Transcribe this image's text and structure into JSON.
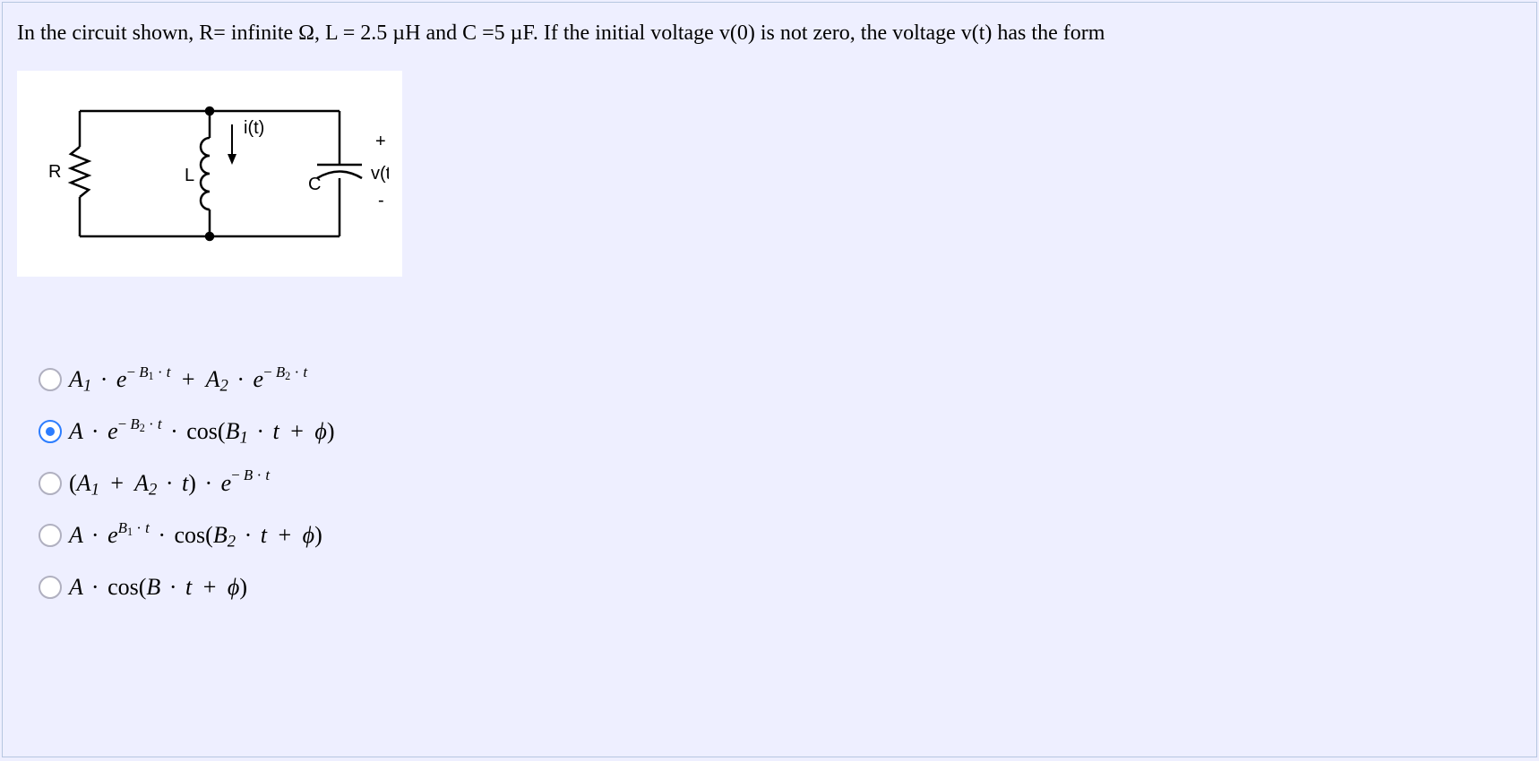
{
  "question": "In the circuit shown, R= infinite  Ω, L = 2.5 µH and C =5 µF. If the initial voltage v(0) is not zero, the voltage v(t) has the form",
  "circuit": {
    "labels": {
      "R": "R",
      "L": "L",
      "i": "i(t)",
      "C": "C",
      "v": "v(t)",
      "plus": "+",
      "minus": "-"
    },
    "colors": {
      "bg": "#ffffff",
      "stroke": "#000000"
    }
  },
  "options": {
    "selectedIndex": 1,
    "items": [
      {
        "html": "A<sub>1</sub> <span class='dot-op'>·</span> e<sup><span class='expblock'>− <i>B</i><sub>1</sub> · <i>t</i></span></sup> <span class='plus'>+</span> A<sub>2</sub> <span class='dot-op'>·</span> e<sup><span class='expblock'>− <i>B</i><sub>2</sub> · <i>t</i></span></sup>"
      },
      {
        "html": "A <span class='dot-op'>·</span> e<sup><span class='expblock'>− <i>B</i><sub>2</sub> · <i>t</i></span></sup> <span class='dot-op'>·</span> <span class='rm'>cos(</span>B<sub>1</sub> <span class='dot-op'>·</span> t <span class='plus'>+</span> ϕ<span class='rm'>)</span>"
      },
      {
        "html": "<span class='rm'>(</span>A<sub>1</sub> <span class='plus'>+</span> A<sub>2</sub> <span class='dot-op'>·</span> t<span class='rm'>)</span> <span class='dot-op'>·</span> e<sup><span class='expblock'>− <i>B</i> · <i>t</i></span></sup>"
      },
      {
        "html": "A <span class='dot-op'>·</span> e<sup><span class='expblock'><i>B</i><sub>1</sub> · <i>t</i></span></sup> <span class='dot-op'>·</span> <span class='rm'>cos(</span>B<sub>2</sub> <span class='dot-op'>·</span> t <span class='plus'>+</span> ϕ<span class='rm'>)</span>"
      },
      {
        "html": "A <span class='dot-op'>·</span> <span class='rm'>cos(</span>B <span class='dot-op'>·</span> t <span class='plus'>+</span> ϕ<span class='rm'>)</span>"
      }
    ]
  },
  "style": {
    "page_bg": "#eeefff",
    "frame_border": "#b6c6e0",
    "radio_border": "#b0b0c0",
    "radio_selected": "#2c7dff",
    "question_fontsize": 24,
    "formula_fontsize": 26
  }
}
